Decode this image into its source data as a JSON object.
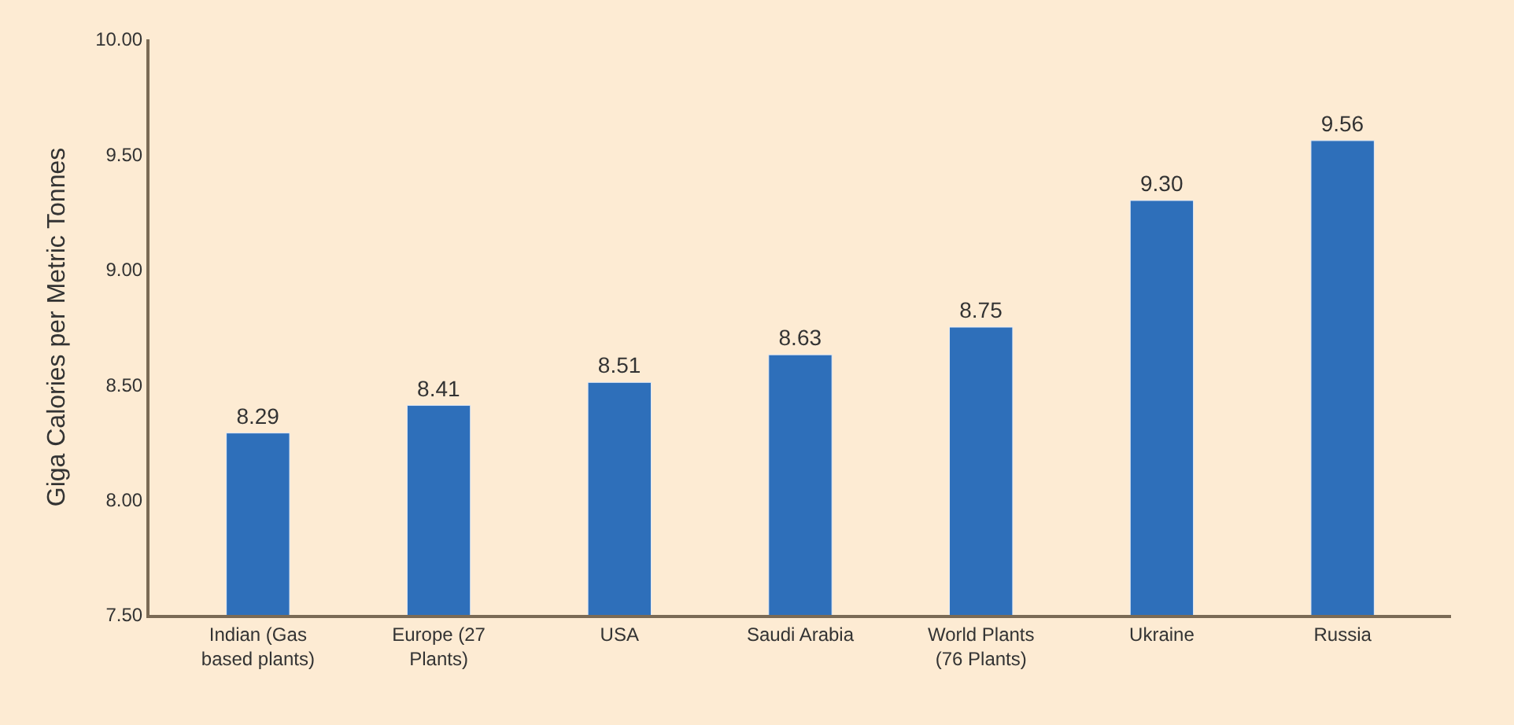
{
  "chart_data": {
    "type": "bar",
    "ylabel": "Giga Calories per Metric Tonnes",
    "categories": [
      "Indian (Gas\nbased plants)",
      "Europe (27\nPlants)",
      "USA",
      "Saudi Arabia",
      "World Plants\n(76 Plants)",
      "Ukraine",
      "Russia"
    ],
    "values": [
      8.29,
      8.41,
      8.51,
      8.63,
      8.75,
      9.3,
      9.56
    ],
    "value_labels": [
      "8.29",
      "8.41",
      "8.51",
      "8.63",
      "8.75",
      "9.30",
      "9.56"
    ],
    "color": "#2e6fba",
    "ylim": [
      7.5,
      10.0
    ],
    "yticks": [
      {
        "value": 7.5,
        "label": "7.50"
      },
      {
        "value": 8.0,
        "label": "8.00"
      },
      {
        "value": 8.5,
        "label": "8.50"
      },
      {
        "value": 9.0,
        "label": "9.00"
      },
      {
        "value": 9.5,
        "label": "9.50"
      },
      {
        "value": 10.0,
        "label": "10.00"
      }
    ],
    "grid": false,
    "legend": false
  }
}
